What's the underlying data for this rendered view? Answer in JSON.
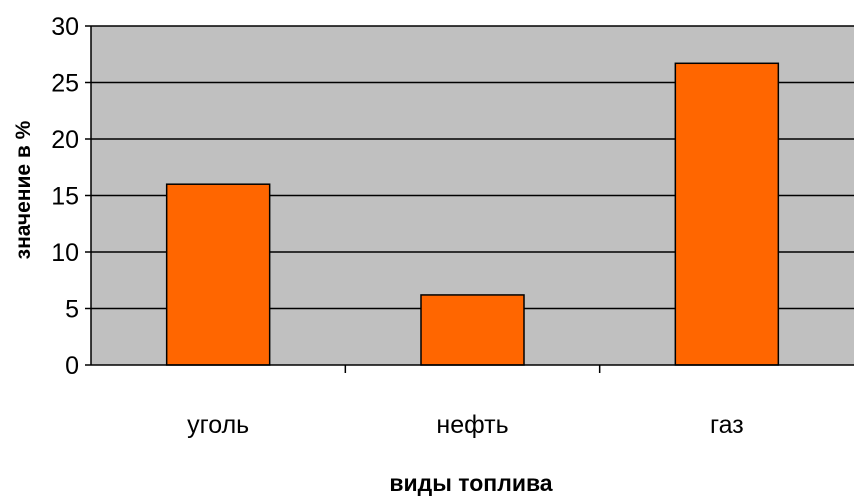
{
  "chart_data": {
    "type": "bar",
    "categories": [
      "уголь",
      "нефть",
      "газ"
    ],
    "values": [
      16,
      6.2,
      26.7
    ],
    "xlabel": "виды топлива",
    "ylabel": "значение в %",
    "ylim": [
      0,
      30
    ],
    "yticks": [
      "0",
      "5",
      "10",
      "15",
      "20",
      "25",
      "30"
    ],
    "grid": true,
    "legend": "none",
    "colors": {
      "bar": "#ff6600",
      "plot_background": "#c0c0c0",
      "gridline": "#000000"
    }
  }
}
